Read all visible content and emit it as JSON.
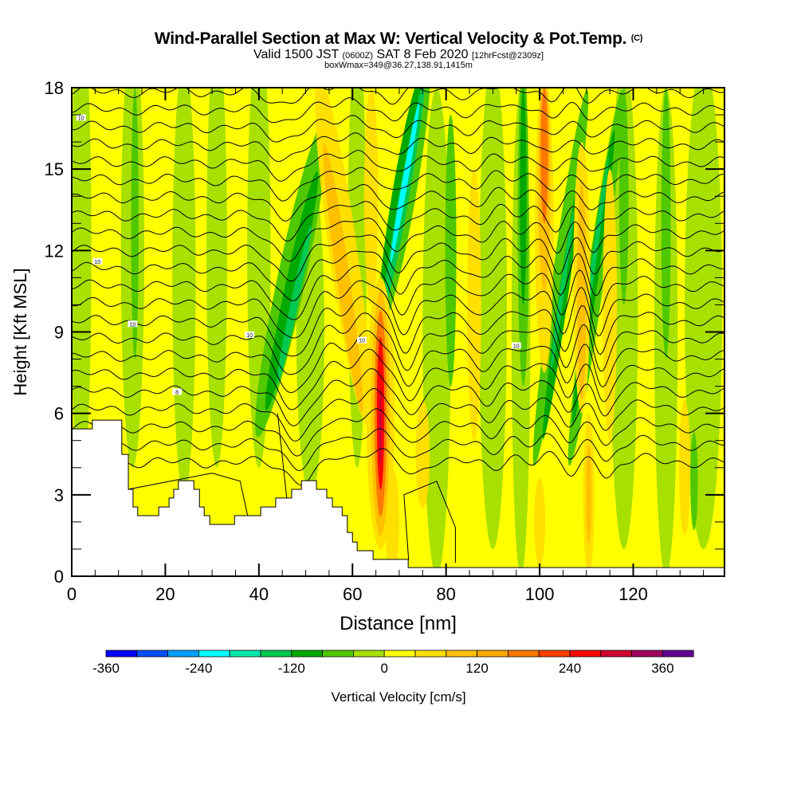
{
  "header": {
    "title": "Wind-Parallel Section at Max W: Vertical Velocity & Pot.Temp.",
    "copyright": "(C)",
    "valid_prefix": "Valid 1500 JST",
    "valid_utc": "(0600Z)",
    "valid_date": "SAT 8 Feb 2020",
    "forecast": "[12hrFcst@2309z]",
    "boxwmax": "boxWmax=349@36.27,138.91,1415m"
  },
  "chart_data": {
    "type": "heatmap",
    "title": "Wind-Parallel Section at Max W: Vertical Velocity & Pot.Temp.",
    "xlabel": "Distance [nm]",
    "ylabel": "Height [Kft MSL]",
    "xlim": [
      0,
      139.5
    ],
    "ylim": [
      0,
      18
    ],
    "x_ticks": [
      0,
      20,
      40,
      60,
      80,
      100,
      120
    ],
    "y_ticks": [
      0,
      3,
      6,
      9,
      12,
      15,
      18
    ],
    "colorbar": {
      "label": "Vertical Velocity [cm/s]",
      "min": -360,
      "step": 40,
      "tick_labels": [
        -360,
        -240,
        -120,
        0,
        120,
        240,
        360
      ],
      "colors": [
        "#0000ff",
        "#0050ff",
        "#00a0ff",
        "#00ffff",
        "#00e8b0",
        "#00c850",
        "#00a800",
        "#50c800",
        "#a8e000",
        "#ffff00",
        "#ffe000",
        "#ffc000",
        "#ffa800",
        "#ff7800",
        "#ff4000",
        "#ff0000",
        "#d00030",
        "#a00060",
        "#600090"
      ]
    },
    "background_w": 20,
    "w_features": [
      {
        "x": 2,
        "y": 12,
        "rx": 2.2,
        "ry": 9,
        "rot": 0,
        "w": -20
      },
      {
        "x": 13,
        "y": 12,
        "rx": 2.5,
        "ry": 8,
        "rot": 0,
        "w": -20
      },
      {
        "x": 24,
        "y": 11,
        "rx": 2.5,
        "ry": 8,
        "rot": 0,
        "w": -20
      },
      {
        "x": 31,
        "y": 12,
        "rx": 2.2,
        "ry": 8,
        "rot": 0,
        "w": -20
      },
      {
        "x": 40,
        "y": 12,
        "rx": 2.5,
        "ry": 8,
        "rot": 0,
        "w": -20
      },
      {
        "x": 51,
        "y": 9,
        "rx": 3,
        "ry": 6,
        "rot": 0,
        "w": -20
      },
      {
        "x": 61,
        "y": 12,
        "rx": 2,
        "ry": 8,
        "rot": 0,
        "w": -20
      },
      {
        "x": 78,
        "y": 9,
        "rx": 3,
        "ry": 9,
        "rot": 0,
        "w": -20
      },
      {
        "x": 90,
        "y": 10,
        "rx": 3,
        "ry": 9,
        "rot": 0,
        "w": -20
      },
      {
        "x": 96,
        "y": 9,
        "rx": 2,
        "ry": 9,
        "rot": 0,
        "w": -20
      },
      {
        "x": 118,
        "y": 10,
        "rx": 3,
        "ry": 9,
        "rot": 0,
        "w": -20
      },
      {
        "x": 127,
        "y": 9,
        "rx": 2.5,
        "ry": 9,
        "rot": 0,
        "w": -20
      },
      {
        "x": 135,
        "y": 10,
        "rx": 4,
        "ry": 9,
        "rot": 0,
        "w": -20
      },
      {
        "x": 13.5,
        "y": 13,
        "rx": 0.8,
        "ry": 5,
        "rot": 0,
        "w": -60
      },
      {
        "x": 47,
        "y": 11,
        "rx": 3,
        "ry": 6,
        "rot": 12,
        "w": -60
      },
      {
        "x": 71,
        "y": 14,
        "rx": 2.5,
        "ry": 5,
        "rot": 10,
        "w": -60
      },
      {
        "x": 81,
        "y": 12,
        "rx": 1.2,
        "ry": 5,
        "rot": 0,
        "w": -60
      },
      {
        "x": 96.5,
        "y": 13,
        "rx": 1.2,
        "ry": 6,
        "rot": 0,
        "w": -60
      },
      {
        "x": 104.5,
        "y": 11,
        "rx": 1.8,
        "ry": 7,
        "rot": 8,
        "w": -60
      },
      {
        "x": 112,
        "y": 11,
        "rx": 1.8,
        "ry": 7,
        "rot": 8,
        "w": -60
      },
      {
        "x": 118,
        "y": 14,
        "rx": 1,
        "ry": 4,
        "rot": 0,
        "w": -60
      },
      {
        "x": 127,
        "y": 13,
        "rx": 1,
        "ry": 5,
        "rot": 0,
        "w": -60
      },
      {
        "x": 133,
        "y": 3.5,
        "rx": 0.8,
        "ry": 1.8,
        "rot": 0,
        "w": -60
      },
      {
        "x": 47,
        "y": 10.5,
        "rx": 1.6,
        "ry": 4.5,
        "rot": 12,
        "w": -100
      },
      {
        "x": 70.5,
        "y": 14.5,
        "rx": 1.6,
        "ry": 4,
        "rot": 10,
        "w": -100
      },
      {
        "x": 96.5,
        "y": 14,
        "rx": 0.7,
        "ry": 4,
        "rot": 0,
        "w": -100
      },
      {
        "x": 104.8,
        "y": 10,
        "rx": 1,
        "ry": 5,
        "rot": 8,
        "w": -100
      },
      {
        "x": 111.5,
        "y": 11,
        "rx": 1,
        "ry": 5.5,
        "rot": 8,
        "w": -100
      },
      {
        "x": 47.5,
        "y": 10,
        "rx": 0.8,
        "ry": 3,
        "rot": 12,
        "w": -140
      },
      {
        "x": 71,
        "y": 14,
        "rx": 1.1,
        "ry": 4.2,
        "rot": 10,
        "w": -140
      },
      {
        "x": 104.8,
        "y": 10.5,
        "rx": 0.5,
        "ry": 3,
        "rot": 8,
        "w": -140
      },
      {
        "x": 111.5,
        "y": 11.5,
        "rx": 0.5,
        "ry": 4,
        "rot": 8,
        "w": -140
      },
      {
        "x": 71.2,
        "y": 14.5,
        "rx": 0.6,
        "ry": 3,
        "rot": 10,
        "w": -220
      },
      {
        "x": 58,
        "y": 12,
        "rx": 3,
        "ry": 6.5,
        "rot": -8,
        "w": 60
      },
      {
        "x": 64,
        "y": 14,
        "rx": 1.5,
        "ry": 4,
        "rot": 0,
        "w": 60
      },
      {
        "x": 66,
        "y": 6,
        "rx": 3,
        "ry": 5,
        "rot": 0,
        "w": 60
      },
      {
        "x": 86,
        "y": 10,
        "rx": 1.5,
        "ry": 5,
        "rot": 0,
        "w": 60
      },
      {
        "x": 101,
        "y": 13,
        "rx": 2,
        "ry": 5.5,
        "rot": 0,
        "w": 60
      },
      {
        "x": 109,
        "y": 11,
        "rx": 1.8,
        "ry": 5,
        "rot": 0,
        "w": 60
      },
      {
        "x": 115,
        "y": 10,
        "rx": 1.5,
        "ry": 5,
        "rot": 0,
        "w": 60
      },
      {
        "x": 68.5,
        "y": 2,
        "rx": 1.5,
        "ry": 2,
        "rot": 0,
        "w": 60
      },
      {
        "x": 75,
        "y": 4.5,
        "rx": 1.5,
        "ry": 2,
        "rot": 0,
        "w": 60
      },
      {
        "x": 100,
        "y": 2,
        "rx": 1.2,
        "ry": 1.6,
        "rot": 0,
        "w": 60
      },
      {
        "x": 110.5,
        "y": 3,
        "rx": 1.2,
        "ry": 3,
        "rot": 0,
        "w": 60
      },
      {
        "x": 131,
        "y": 4,
        "rx": 1.2,
        "ry": 2.5,
        "rot": 0,
        "w": 60
      },
      {
        "x": 58,
        "y": 11,
        "rx": 1.4,
        "ry": 5,
        "rot": -8,
        "w": 100
      },
      {
        "x": 101,
        "y": 14.5,
        "rx": 1.3,
        "ry": 4,
        "rot": 0,
        "w": 100
      },
      {
        "x": 109,
        "y": 10.5,
        "rx": 1,
        "ry": 4,
        "rot": 0,
        "w": 100
      },
      {
        "x": 66,
        "y": 6,
        "rx": 2,
        "ry": 4.5,
        "rot": 0,
        "w": 100
      },
      {
        "x": 110.5,
        "y": 3,
        "rx": 0.6,
        "ry": 1.8,
        "rot": 0,
        "w": 100
      },
      {
        "x": 101,
        "y": 15.5,
        "rx": 0.8,
        "ry": 2.5,
        "rot": 0,
        "w": 180
      },
      {
        "x": 66,
        "y": 6,
        "rx": 1.3,
        "ry": 3.8,
        "rot": 0,
        "w": 180
      },
      {
        "x": 66,
        "y": 6,
        "rx": 0.8,
        "ry": 2.8,
        "rot": 0,
        "w": 260
      },
      {
        "x": 66,
        "y": 5.5,
        "rx": 0.35,
        "ry": 1.5,
        "rot": 0,
        "w": 300
      }
    ],
    "terrain": [
      [
        0,
        4.4,
        5.43
      ],
      [
        4.4,
        10.7,
        5.75
      ],
      [
        10.7,
        12.1,
        4.49
      ],
      [
        12.1,
        13.1,
        3.2
      ],
      [
        13.1,
        14.1,
        2.55
      ],
      [
        14.1,
        18.6,
        2.23
      ],
      [
        18.6,
        20.8,
        2.55
      ],
      [
        20.8,
        21.8,
        2.88
      ],
      [
        21.8,
        22.8,
        3.2
      ],
      [
        22.8,
        26.1,
        3.52
      ],
      [
        26.1,
        27.3,
        3.2
      ],
      [
        27.3,
        28.3,
        2.55
      ],
      [
        28.3,
        29.5,
        2.23
      ],
      [
        29.5,
        34.8,
        1.91
      ],
      [
        34.8,
        40.4,
        2.23
      ],
      [
        40.4,
        43.6,
        2.55
      ],
      [
        43.6,
        47.0,
        2.88
      ],
      [
        47.0,
        49.1,
        3.2
      ],
      [
        49.1,
        52.3,
        3.52
      ],
      [
        52.3,
        54.5,
        3.2
      ],
      [
        54.5,
        55.7,
        2.88
      ],
      [
        55.7,
        57.8,
        2.55
      ],
      [
        57.8,
        58.9,
        2.23
      ],
      [
        58.9,
        60.0,
        1.61
      ],
      [
        60.0,
        61.0,
        1.26
      ],
      [
        61.0,
        64.4,
        0.94
      ],
      [
        64.4,
        71.9,
        0.62
      ],
      [
        71.9,
        139.5,
        0.32
      ]
    ],
    "theta_labels": [
      {
        "x": 2,
        "y": 16.9,
        "text": "10"
      },
      {
        "x": 5.5,
        "y": 11.6,
        "text": "10"
      },
      {
        "x": 13,
        "y": 9.3,
        "text": "10"
      },
      {
        "x": 38,
        "y": 8.9,
        "text": "10"
      },
      {
        "x": 22.5,
        "y": 6.8,
        "text": "8"
      },
      {
        "x": 62,
        "y": 8.7,
        "text": "10"
      },
      {
        "x": 95,
        "y": 8.5,
        "text": "10"
      }
    ]
  }
}
